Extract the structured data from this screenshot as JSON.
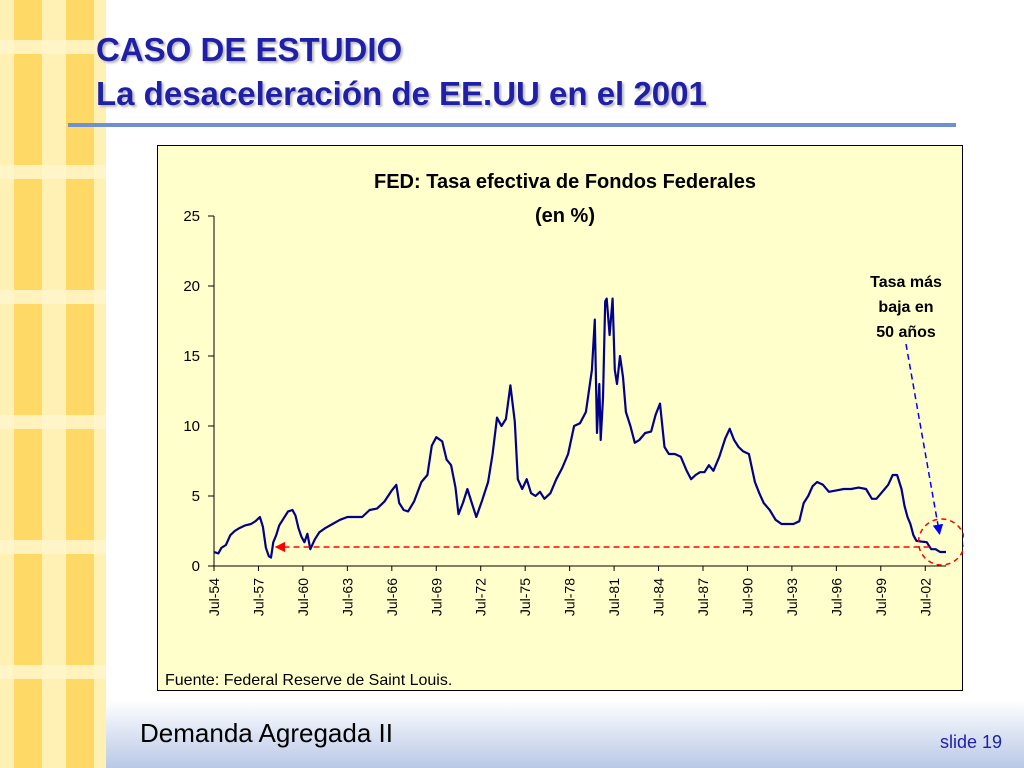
{
  "slide": {
    "title_line1": "CASO DE ESTUDIO",
    "title_line2": "La desaceleración de EE.UU en el 2001",
    "footer": "Demanda Agregada II",
    "slide_number": "slide 19"
  },
  "colors": {
    "title": "#1f1fa8",
    "accent_rule": "#6f8fcf",
    "deco_yellow_light": "#fff1b3",
    "deco_yellow": "#ffd966",
    "series_line": "#00008b",
    "annotation_red": "#ff0000",
    "annotation_blue": "#0000ff",
    "plot_background": "#ffffcc"
  },
  "chart_data": {
    "type": "line",
    "title": "FED: Tasa efectiva de Fondos Federales",
    "subtitle": "(en %)",
    "xlabel": "",
    "ylabel": "",
    "x_tick_labels": [
      "Jul-54",
      "Jul-57",
      "Jul-60",
      "Jul-63",
      "Jul-66",
      "Jul-69",
      "Jul-72",
      "Jul-75",
      "Jul-78",
      "Jul-81",
      "Jul-84",
      "Jul-87",
      "Jul-90",
      "Jul-93",
      "Jul-96",
      "Jul-99",
      "Jul-02"
    ],
    "x_range": [
      1954.5,
      2003.9
    ],
    "y_ticks": [
      0,
      5,
      10,
      15,
      20,
      25
    ],
    "ylim": [
      0,
      25
    ],
    "grid": false,
    "legend": "none",
    "source_note": "Fuente: Federal Reserve de Saint Louis.",
    "annotation": {
      "text_lines": [
        "Tasa más",
        "baja en",
        "50 años"
      ],
      "low_point": {
        "x": 2003.6,
        "y": 1.0
      },
      "reference_low": {
        "x": 1958.4,
        "y": 1.0
      }
    },
    "series": [
      {
        "x": [
          1954.5,
          1954.8,
          1955.0,
          1955.3,
          1955.6,
          1955.9,
          1956.2,
          1956.6,
          1957.0,
          1957.3,
          1957.6,
          1957.8,
          1958.0,
          1958.2,
          1958.35,
          1958.5,
          1958.7,
          1958.9,
          1959.2,
          1959.5,
          1959.8,
          1960.0,
          1960.2,
          1960.4,
          1960.6,
          1960.8,
          1961.0,
          1961.3,
          1961.6,
          1962.0,
          1962.5,
          1963.0,
          1963.5,
          1964.0,
          1964.5,
          1965.0,
          1965.5,
          1966.0,
          1966.5,
          1966.8,
          1967.0,
          1967.3,
          1967.6,
          1968.0,
          1968.5,
          1968.9,
          1969.2,
          1969.5,
          1969.9,
          1970.2,
          1970.5,
          1970.8,
          1971.0,
          1971.3,
          1971.6,
          1971.9,
          1972.2,
          1972.6,
          1973.0,
          1973.3,
          1973.6,
          1973.9,
          1974.2,
          1974.5,
          1974.8,
          1975.0,
          1975.3,
          1975.6,
          1975.9,
          1976.2,
          1976.5,
          1976.8,
          1977.2,
          1977.6,
          1978.0,
          1978.4,
          1978.8,
          1979.2,
          1979.6,
          1980.0,
          1980.2,
          1980.35,
          1980.5,
          1980.6,
          1980.75,
          1980.9,
          1981.0,
          1981.2,
          1981.4,
          1981.55,
          1981.7,
          1981.9,
          1982.1,
          1982.3,
          1982.6,
          1982.9,
          1983.2,
          1983.6,
          1984.0,
          1984.3,
          1984.6,
          1984.9,
          1985.2,
          1985.6,
          1986.0,
          1986.4,
          1986.7,
          1987.0,
          1987.3,
          1987.6,
          1987.9,
          1988.2,
          1988.6,
          1989.0,
          1989.3,
          1989.6,
          1989.9,
          1990.2,
          1990.6,
          1991.0,
          1991.3,
          1991.6,
          1992.0,
          1992.4,
          1992.8,
          1993.2,
          1993.6,
          1994.0,
          1994.3,
          1994.6,
          1994.9,
          1995.2,
          1995.6,
          1996.0,
          1996.5,
          1997.0,
          1997.5,
          1998.0,
          1998.5,
          1998.9,
          1999.2,
          1999.6,
          2000.0,
          2000.3,
          2000.6,
          2000.9,
          2001.1,
          2001.3,
          2001.5,
          2001.7,
          2001.9,
          2002.2,
          2002.6,
          2002.9,
          2003.2,
          2003.5,
          2003.9
        ],
        "y": [
          1.0,
          0.9,
          1.3,
          1.5,
          2.2,
          2.5,
          2.7,
          2.9,
          3.0,
          3.2,
          3.5,
          2.8,
          1.3,
          0.7,
          0.6,
          1.7,
          2.2,
          2.9,
          3.4,
          3.9,
          4.0,
          3.6,
          2.7,
          2.1,
          1.7,
          2.3,
          1.2,
          1.9,
          2.4,
          2.7,
          3.0,
          3.3,
          3.5,
          3.5,
          3.5,
          4.0,
          4.1,
          4.6,
          5.4,
          5.8,
          4.5,
          4.0,
          3.9,
          4.6,
          6.0,
          6.5,
          8.6,
          9.2,
          8.9,
          7.6,
          7.2,
          5.6,
          3.7,
          4.5,
          5.5,
          4.5,
          3.5,
          4.7,
          6.0,
          8.0,
          10.6,
          10.0,
          10.5,
          12.9,
          10.3,
          6.2,
          5.5,
          6.2,
          5.2,
          5.0,
          5.3,
          4.8,
          5.2,
          6.2,
          7.0,
          8.0,
          10.0,
          10.2,
          11.0,
          14.0,
          17.6,
          9.5,
          13.0,
          9.0,
          12.0,
          18.9,
          19.1,
          16.5,
          19.1,
          14.0,
          13.0,
          15.0,
          13.5,
          11.0,
          10.0,
          8.8,
          9.0,
          9.5,
          9.6,
          10.8,
          11.6,
          8.5,
          8.0,
          8.0,
          7.8,
          6.8,
          6.2,
          6.5,
          6.7,
          6.7,
          7.2,
          6.8,
          7.8,
          9.1,
          9.8,
          9.0,
          8.5,
          8.2,
          8.0,
          6.0,
          5.2,
          4.5,
          4.0,
          3.3,
          3.0,
          3.0,
          3.0,
          3.2,
          4.5,
          5.0,
          5.7,
          6.0,
          5.8,
          5.3,
          5.4,
          5.5,
          5.5,
          5.6,
          5.5,
          4.8,
          4.8,
          5.3,
          5.8,
          6.5,
          6.5,
          5.5,
          4.3,
          3.5,
          3.0,
          2.2,
          1.8,
          1.75,
          1.7,
          1.2,
          1.2,
          1.0,
          1.0
        ]
      }
    ]
  }
}
